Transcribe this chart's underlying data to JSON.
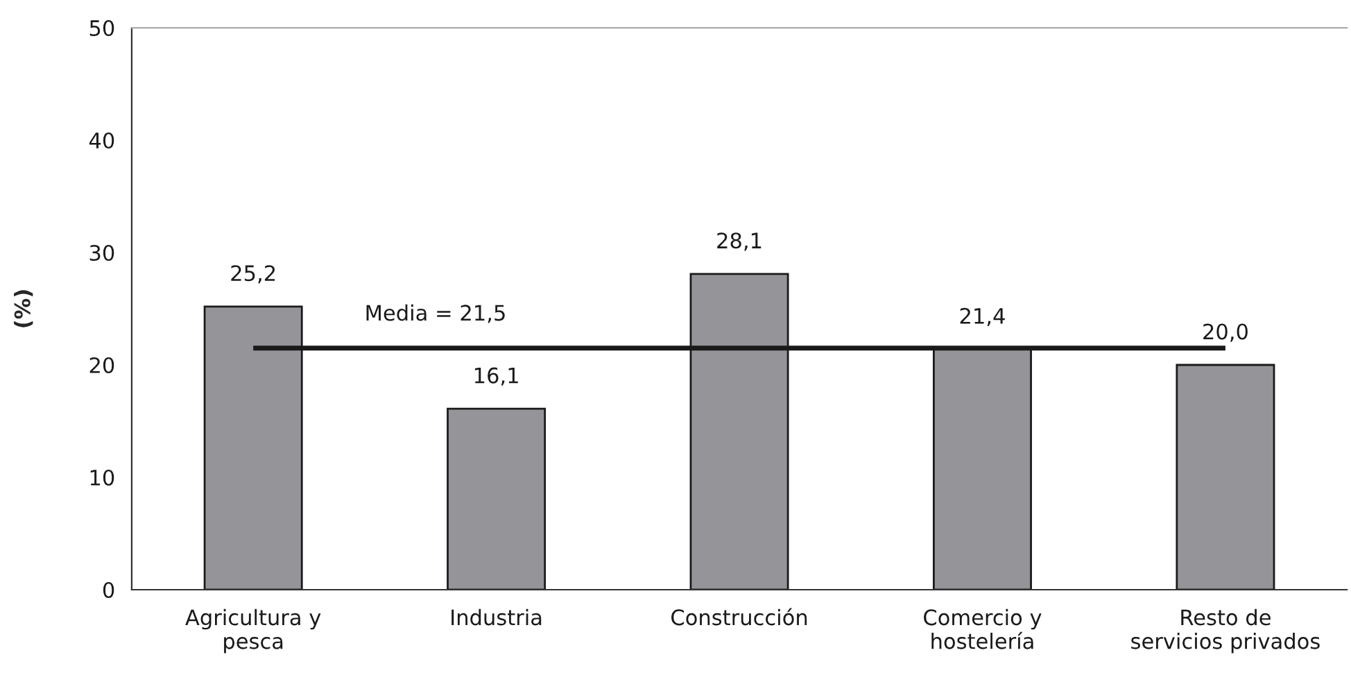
{
  "chart_data": {
    "type": "bar",
    "ylabel": "(%)",
    "categories": [
      "Agricultura y\npesca",
      "Industria",
      "Construcción",
      "Comercio y\nhostelería",
      "Resto de\nservicios privados"
    ],
    "values": [
      25.2,
      16.1,
      28.1,
      21.4,
      20.0
    ],
    "value_labels": [
      "25,2",
      "16,1",
      "28,1",
      "21,4",
      "20,0"
    ],
    "color": "#959599",
    "ylim": [
      0,
      50
    ],
    "yticks": [
      0,
      10,
      20,
      30,
      40,
      50
    ],
    "ref_lines": [
      {
        "axis": "y",
        "value": 21.5,
        "label": "Media = 21,5",
        "color": "#1a1a1a",
        "line_style": "solid"
      }
    ],
    "grid": false
  }
}
